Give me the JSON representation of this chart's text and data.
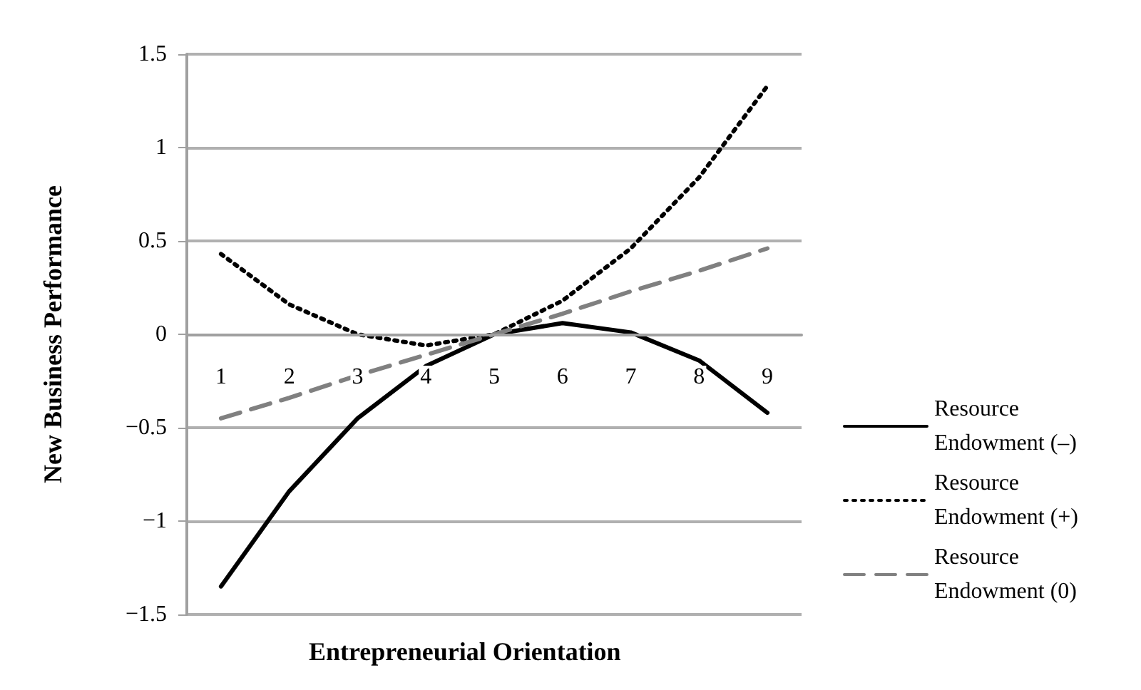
{
  "chart_data": {
    "type": "line",
    "xlabel": "Entrepreneurial Orientation",
    "ylabel": "New Business Performance",
    "categories": [
      "1",
      "2",
      "3",
      "4",
      "5",
      "6",
      "7",
      "8",
      "9"
    ],
    "series": [
      {
        "name": "Resource Endowment (–)",
        "color": "#000000",
        "line_style": "solid",
        "values": [
          -1.35,
          -0.84,
          -0.45,
          -0.17,
          0,
          0.06,
          0.01,
          -0.14,
          -0.42
        ]
      },
      {
        "name": "Resource Endowment (+)",
        "color": "#000000",
        "line_style": "dotted",
        "values": [
          0.43,
          0.16,
          0,
          -0.06,
          0,
          0.18,
          0.46,
          0.84,
          1.33
        ]
      },
      {
        "name": "Resource Endowment (0)",
        "color": "#808080",
        "line_style": "dashed",
        "values": [
          -0.45,
          -0.34,
          -0.22,
          -0.11,
          0,
          0.11,
          0.23,
          0.34,
          0.46
        ]
      }
    ],
    "ylim": [
      -1.5,
      1.5
    ],
    "yticks": [
      -1.5,
      -1,
      -0.5,
      0,
      0.5,
      1,
      1.5
    ],
    "grid": "y",
    "legend": "right",
    "marker": "none"
  }
}
